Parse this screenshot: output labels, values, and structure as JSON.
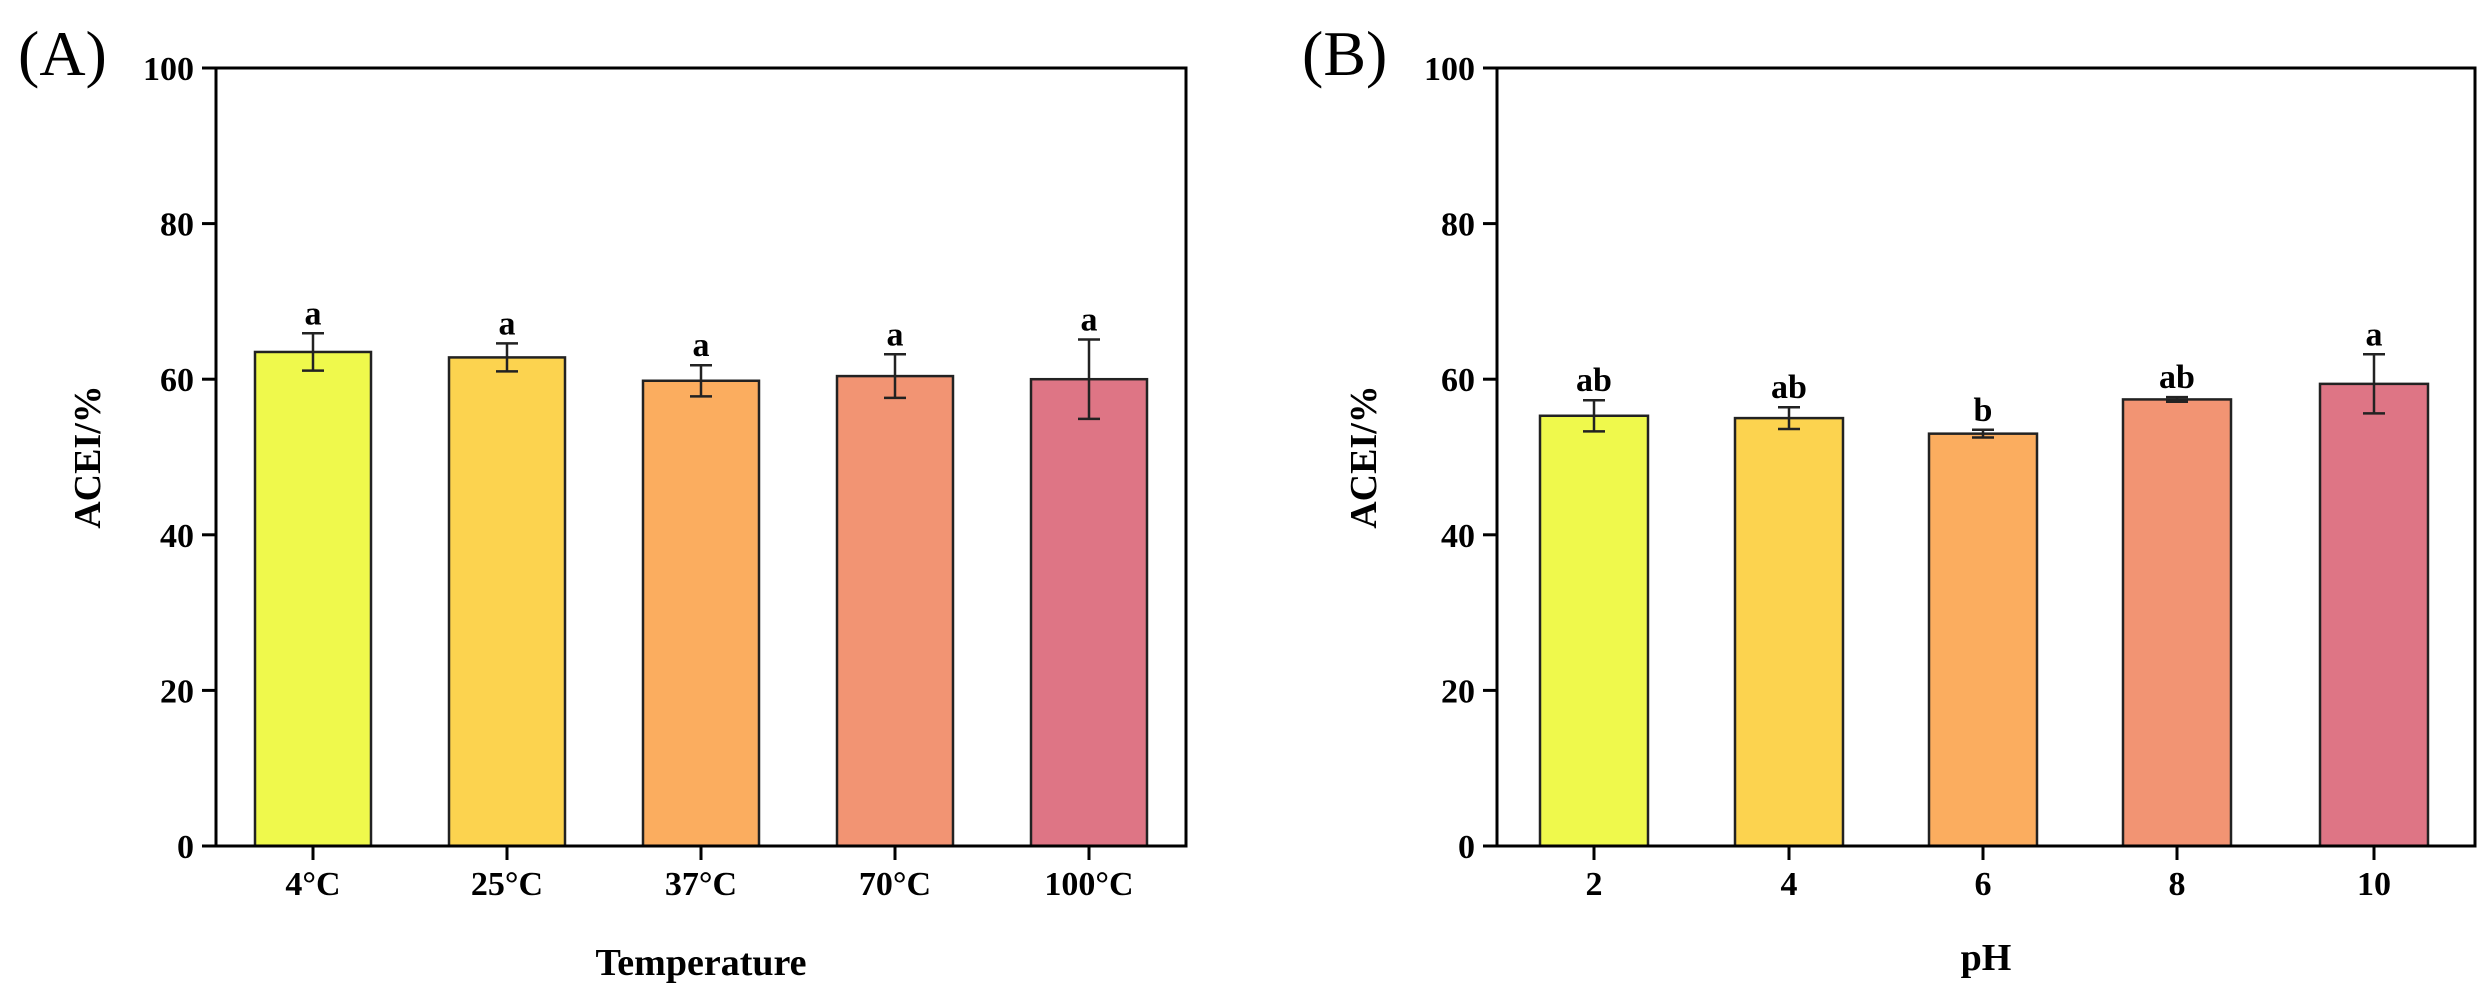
{
  "figure": {
    "width": 2490,
    "height": 996
  },
  "chart_data": [
    {
      "panel": "(A)",
      "type": "bar",
      "title": "",
      "xlabel": "Temperature",
      "ylabel": "ACEI/%",
      "ylim": [
        0,
        100
      ],
      "yticks": [
        0,
        20,
        40,
        60,
        80,
        100
      ],
      "categories": [
        "4°C",
        "25°C",
        "37°C",
        "70°C",
        "100°C"
      ],
      "values": [
        63.5,
        62.8,
        59.8,
        60.4,
        60.0
      ],
      "errors": [
        2.4,
        1.8,
        2.0,
        2.8,
        5.1
      ],
      "significance": [
        "a",
        "a",
        "a",
        "a",
        "a"
      ],
      "colors": [
        "#eff94c",
        "#fcd34f",
        "#fbad5f",
        "#f29473",
        "#de7585"
      ]
    },
    {
      "panel": "(B)",
      "type": "bar",
      "title": "",
      "xlabel": "pH",
      "ylabel": "ACEI/%",
      "ylim": [
        0,
        100
      ],
      "yticks": [
        0,
        20,
        40,
        60,
        80,
        100
      ],
      "categories": [
        "2",
        "4",
        "6",
        "8",
        "10"
      ],
      "values": [
        55.3,
        55.0,
        53.0,
        57.4,
        59.4
      ],
      "errors": [
        2.0,
        1.4,
        0.5,
        0.3,
        3.8
      ],
      "significance": [
        "ab",
        "ab",
        "b",
        "ab",
        "a"
      ],
      "colors": [
        "#eff94c",
        "#fcd34f",
        "#fbad5f",
        "#f29473",
        "#de7585"
      ]
    }
  ]
}
